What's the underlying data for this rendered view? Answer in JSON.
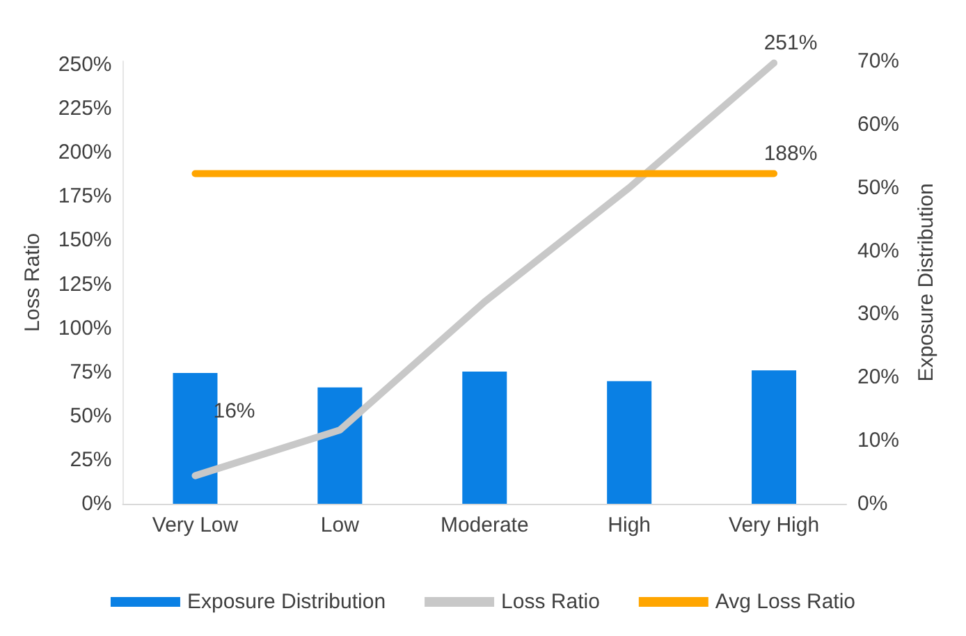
{
  "chart_data": {
    "type": "bar",
    "categories": [
      "Very Low",
      "Low",
      "Moderate",
      "High",
      "Very High"
    ],
    "ylabel": "Loss Ratio",
    "y2label": "Exposure Distribution",
    "series": [
      {
        "name": "Exposure Distribution",
        "axis": "y2",
        "color": "#0a80e4",
        "values": [
          20.7,
          18.4,
          20.9,
          19.4,
          21.1
        ]
      },
      {
        "name": "Loss Ratio",
        "type": "line",
        "color": "#c8c8c8",
        "values": [
          16,
          42,
          115,
          180,
          251
        ],
        "value_labels": [
          "16%",
          null,
          null,
          null,
          "251%"
        ]
      },
      {
        "name": "Avg Loss Ratio",
        "type": "line",
        "color": "#ffa500",
        "values": [
          188,
          188,
          188,
          188,
          188
        ],
        "value_labels": [
          null,
          null,
          null,
          null,
          "188%"
        ]
      }
    ],
    "ylim": [
      0,
      252
    ],
    "yticks": [
      {
        "value": 0,
        "label": "0%"
      },
      {
        "value": 25,
        "label": "25%"
      },
      {
        "value": 50,
        "label": "50%"
      },
      {
        "value": 75,
        "label": "75%"
      },
      {
        "value": 100,
        "label": "100%"
      },
      {
        "value": 125,
        "label": "125%"
      },
      {
        "value": 150,
        "label": "150%"
      },
      {
        "value": 175,
        "label": "175%"
      },
      {
        "value": 200,
        "label": "200%"
      },
      {
        "value": 225,
        "label": "225%"
      },
      {
        "value": 250,
        "label": "250%"
      }
    ],
    "y2lim": [
      0,
      70
    ],
    "y2ticks": [
      {
        "value": 0,
        "label": "0%"
      },
      {
        "value": 10,
        "label": "10%"
      },
      {
        "value": 20,
        "label": "20%"
      },
      {
        "value": 30,
        "label": "30%"
      },
      {
        "value": 40,
        "label": "40%"
      },
      {
        "value": 50,
        "label": "50%"
      },
      {
        "value": 60,
        "label": "60%"
      },
      {
        "value": 70,
        "label": "70%"
      }
    ],
    "grid": false,
    "legend": "bottom",
    "marker": "none",
    "line_style": "solid"
  }
}
